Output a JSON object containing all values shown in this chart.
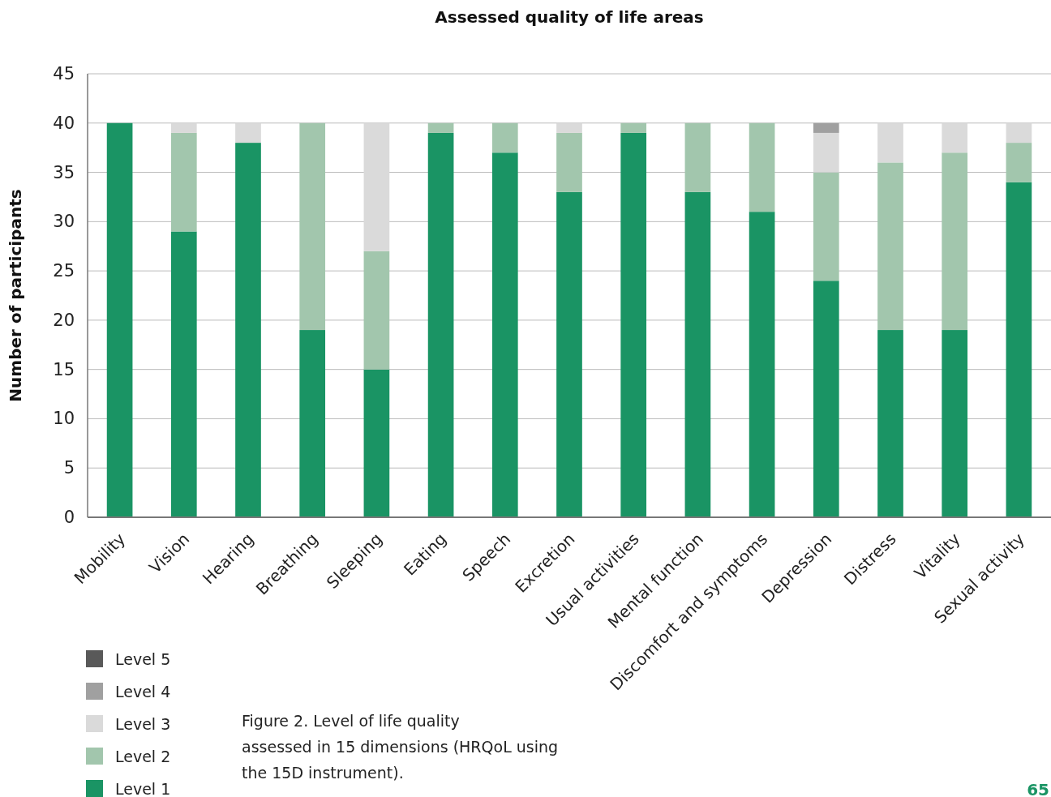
{
  "chart_data": {
    "type": "bar",
    "title": "Assessed quality of life areas",
    "ylabel": "Number of participants",
    "categories": [
      "Mobility",
      "Vision",
      "Hearing",
      "Breathing",
      "Sleeping",
      "Eating",
      "Speech",
      "Excretion",
      "Usual activities",
      "Mental function",
      "Discomfort and symptoms",
      "Depression",
      "Distress",
      "Vitality",
      "Sexual activity"
    ],
    "stacked": true,
    "series": [
      {
        "name": "Level 1",
        "color": "#1a9464",
        "values": [
          40,
          29,
          38,
          19,
          15,
          39,
          37,
          33,
          39,
          33,
          31,
          24,
          19,
          19,
          34
        ]
      },
      {
        "name": "Level 2",
        "color": "#a2c6ad",
        "values": [
          0,
          10,
          0,
          21,
          12,
          1,
          3,
          6,
          1,
          7,
          9,
          11,
          17,
          18,
          4
        ]
      },
      {
        "name": "Level 3",
        "color": "#dadada",
        "values": [
          0,
          1,
          2,
          0,
          13,
          0,
          0,
          1,
          0,
          0,
          0,
          4,
          4,
          3,
          2
        ]
      },
      {
        "name": "Level 4",
        "color": "#a0a0a0",
        "values": [
          0,
          0,
          0,
          0,
          0,
          0,
          0,
          0,
          0,
          0,
          0,
          1,
          0,
          0,
          0
        ]
      },
      {
        "name": "Level 5",
        "color": "#595959",
        "values": [
          0,
          0,
          0,
          0,
          0,
          0,
          0,
          0,
          0,
          0,
          0,
          0,
          0,
          0,
          0
        ]
      }
    ],
    "ylim": [
      0,
      45
    ],
    "yticks": [
      0,
      5,
      10,
      15,
      20,
      25,
      30,
      35,
      40,
      45
    ],
    "grid": "y",
    "legend": "bottom left",
    "annotations": [
      "Figure 2. Level of life quality assessed in 15 dimensions (HRQoL using the 15D instrument).",
      "65"
    ]
  }
}
